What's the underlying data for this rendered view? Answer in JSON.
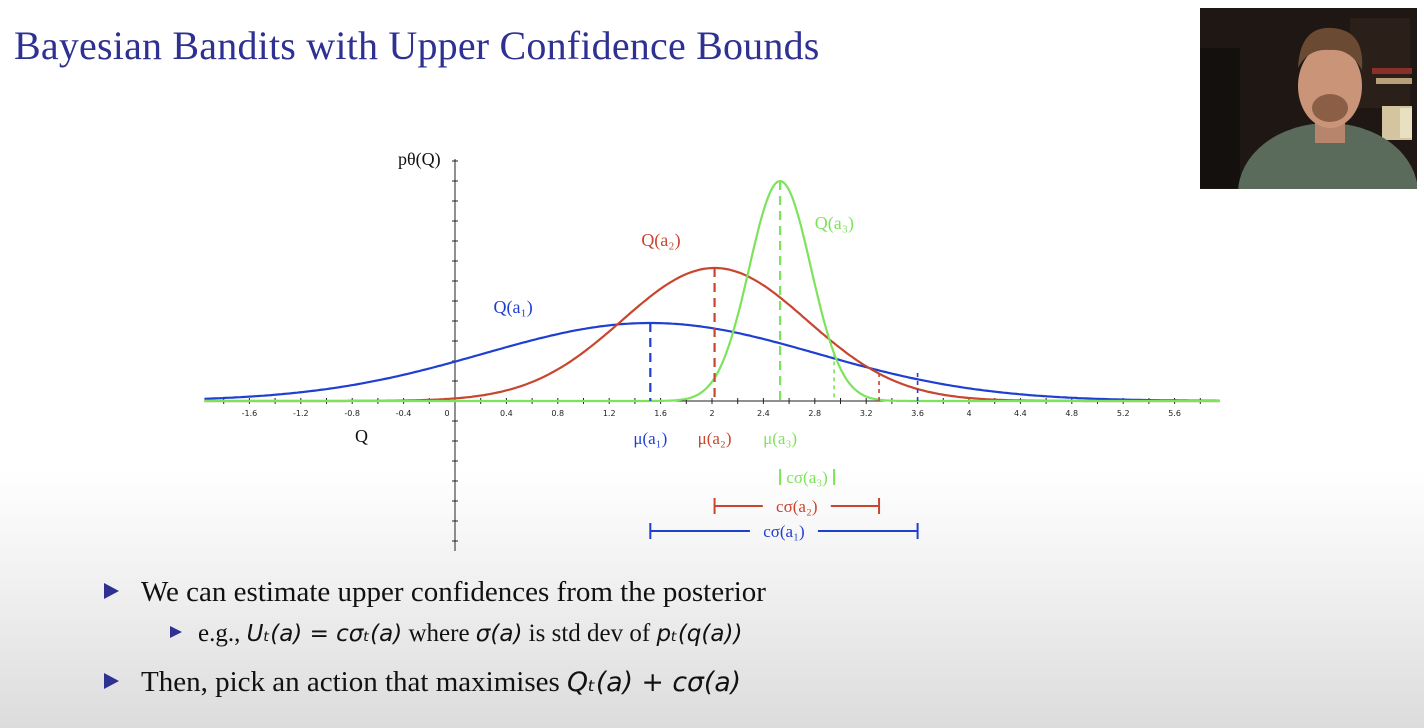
{
  "slide": {
    "title": "Bayesian Bandits with Upper Confidence Bounds",
    "bullets": [
      {
        "level": 1,
        "text": "We can estimate upper confidences from the posterior"
      },
      {
        "level": 2,
        "text_prefix": "e.g., ",
        "math1": "Uₜ(a) = cσₜ(a)",
        "text_mid": " where ",
        "math2": "σ(a)",
        "text_mid2": " is std dev of ",
        "math3": "pₜ(q(a))"
      },
      {
        "level": 1,
        "text": "Then, pick an action that maximises ",
        "math": "Qₜ(a) + cσ(a)"
      }
    ]
  },
  "chart_data": {
    "type": "line",
    "title": "",
    "ylabel": "pθ(Q)",
    "xlabel": "Q",
    "xlim": [
      -1.95,
      5.95
    ],
    "ylim": [
      -1.5,
      2.6
    ],
    "x_ticks": [
      "-1.6",
      "-1.2",
      "-0.8",
      "-0.4",
      "0",
      "0.4",
      "0.8",
      "1.2",
      "1.6",
      "2",
      "2.4",
      "2.8",
      "3.2",
      "3.6",
      "4",
      "4.4",
      "4.8",
      "5.2",
      "5.6"
    ],
    "series": [
      {
        "name": "Q(a₁)",
        "color": "#1f3fd1",
        "mean": 1.52,
        "std": 1.3,
        "peak": 0.78,
        "ucb": 3.6,
        "mu_label": "μ(a₁)",
        "csigma_label": "cσ(a₁)"
      },
      {
        "name": "Q(a₂)",
        "color": "#c8452e",
        "mean": 2.02,
        "std": 0.72,
        "peak": 1.33,
        "ucb": 3.3,
        "mu_label": "μ(a₂)",
        "csigma_label": "cσ(a₂)"
      },
      {
        "name": "Q(a₃)",
        "color": "#7ee35c",
        "mean": 2.53,
        "std": 0.24,
        "peak": 2.2,
        "ucb": 2.95,
        "mu_label": "μ(a₃)",
        "csigma_label": "cσ(a₃)"
      }
    ]
  }
}
